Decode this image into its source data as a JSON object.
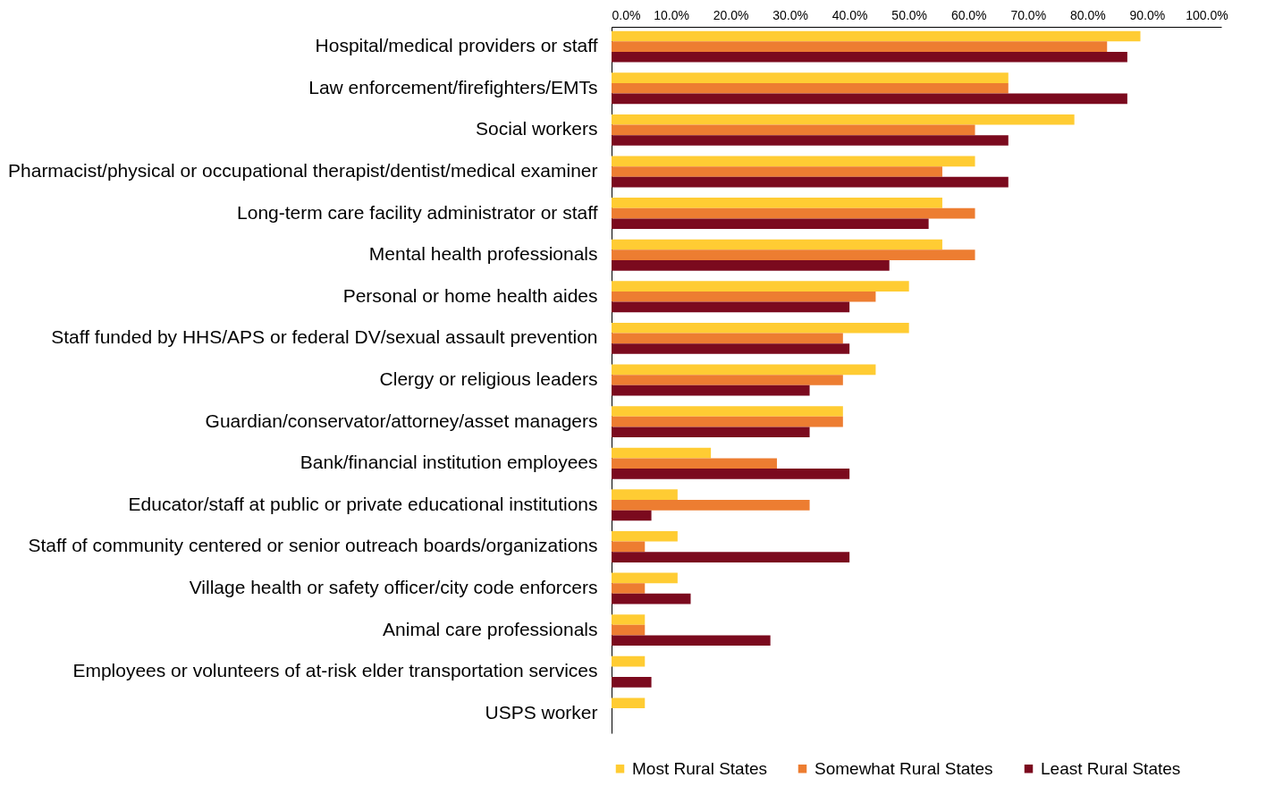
{
  "chart_data": {
    "type": "bar",
    "orientation": "horizontal",
    "legend": "bottom",
    "grid": false,
    "categories": [
      "Hospital/medical providers or staff",
      "Law enforcement/firefighters/EMTs",
      "Social workers",
      "Pharmacist/physical or occupational therapist/dentist/medical examiner",
      "Long-term care facility administrator or staff",
      "Mental health professionals",
      "Personal or home health aides",
      "Staff funded by HHS/APS or federal DV/sexual assault prevention",
      "Clergy or religious leaders",
      "Guardian/conservator/attorney/asset managers",
      "Bank/financial institution employees",
      "Educator/staff at public or private educational institutions",
      "Staff of community centered or senior outreach boards/organizations",
      "Village health or safety officer/city code enforcers",
      "Animal care professionals",
      "Employees or volunteers of at-risk elder transportation services",
      "USPS worker"
    ],
    "series": [
      {
        "name": "Most Rural States",
        "color": "#ffcc33",
        "values": [
          88.9,
          66.7,
          77.8,
          61.1,
          55.6,
          55.6,
          50.0,
          50.0,
          44.4,
          38.9,
          16.7,
          11.1,
          11.1,
          11.1,
          5.6,
          5.6,
          5.6
        ]
      },
      {
        "name": "Somewhat Rural States",
        "color": "#ed7d31",
        "values": [
          83.3,
          66.7,
          61.1,
          55.6,
          61.1,
          61.1,
          44.4,
          38.9,
          38.9,
          38.9,
          27.8,
          33.3,
          5.6,
          5.6,
          5.6,
          0,
          0
        ]
      },
      {
        "name": "Least Rural States",
        "color": "#7b0a1e",
        "values": [
          86.7,
          86.7,
          66.7,
          66.7,
          53.3,
          46.7,
          40.0,
          40.0,
          33.3,
          33.3,
          40.0,
          6.7,
          40.0,
          13.3,
          26.7,
          6.7,
          0
        ]
      }
    ],
    "xlim": [
      0,
      102.5
    ],
    "xticks": [
      {
        "value": 0,
        "label": "0.0%"
      },
      {
        "value": 10,
        "label": "10.0%"
      },
      {
        "value": 20,
        "label": "20.0%"
      },
      {
        "value": 30,
        "label": "30.0%"
      },
      {
        "value": 40,
        "label": "40.0%"
      },
      {
        "value": 50,
        "label": "50.0%"
      },
      {
        "value": 60,
        "label": "60.0%"
      },
      {
        "value": 70,
        "label": "70.0%"
      },
      {
        "value": 80,
        "label": "80.0%"
      },
      {
        "value": 90,
        "label": "90.0%"
      },
      {
        "value": 100,
        "label": "100.0%"
      }
    ]
  }
}
